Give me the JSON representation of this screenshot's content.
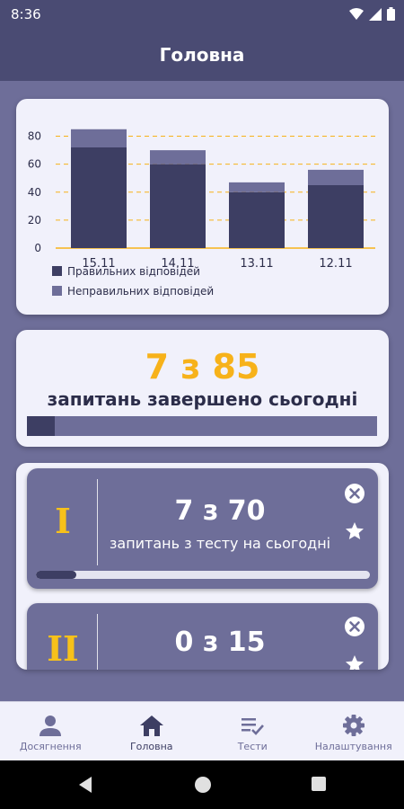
{
  "status": {
    "time": "8:36"
  },
  "header": {
    "title": "Головна"
  },
  "chart_data": {
    "type": "bar",
    "stacked": true,
    "categories": [
      "15.11",
      "14.11",
      "13.11",
      "12.11"
    ],
    "series": [
      {
        "name": "Правильних відповідей",
        "values": [
          72,
          60,
          40,
          45
        ],
        "color": "#3d3e63"
      },
      {
        "name": "Неправильних відповідей",
        "values": [
          13,
          10,
          7,
          11
        ],
        "color": "#6e6e99"
      }
    ],
    "yticks": [
      "0",
      "20",
      "40",
      "60",
      "80"
    ],
    "ylim": [
      0,
      90
    ],
    "grid": true,
    "grid_color": "#f7b21a",
    "legend": "bottom-left"
  },
  "daily": {
    "value": "7 з 85",
    "label": "запитань завершено сьогодні",
    "progress": 0.08
  },
  "tests": [
    {
      "numeral": "I",
      "count": "7 з 70",
      "label": "запитань з тесту на сьогодні",
      "progress": 0.12,
      "close_icon": "close-circle-icon",
      "star_icon": "star-icon"
    },
    {
      "numeral": "II",
      "count": "0 з 15",
      "label": "",
      "progress": 0,
      "close_icon": "close-circle-icon",
      "star_icon": "star-icon"
    }
  ],
  "nav": {
    "items": [
      {
        "label": "Досягнення",
        "icon": "person-icon"
      },
      {
        "label": "Головна",
        "icon": "home-icon"
      },
      {
        "label": "Тести",
        "icon": "checklist-icon"
      },
      {
        "label": "Налаштування",
        "icon": "gear-icon"
      }
    ]
  },
  "colors": {
    "primary": "#4a4b73",
    "background": "#6e6e99",
    "dark": "#3d3e63",
    "accent": "#f7b21a",
    "card": "#f1f1fb"
  }
}
